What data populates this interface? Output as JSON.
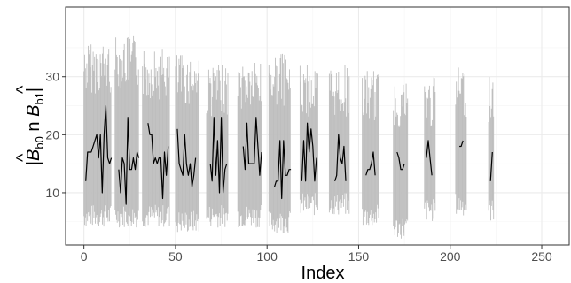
{
  "chart_data": {
    "type": "line",
    "title": "",
    "xlabel": "Index",
    "ylabel_parts": {
      "prefix": "|",
      "b0_letter": "B",
      "b0_sub": "b0",
      "middle": " n ",
      "b1_letter": "B",
      "b1_sub": "b1",
      "suffix": "|",
      "hat": "^"
    },
    "xlim": [
      -10,
      265
    ],
    "ylim": [
      1,
      42
    ],
    "x_ticks": [
      0,
      50,
      100,
      150,
      200,
      250
    ],
    "y_ticks": [
      10,
      20,
      30
    ],
    "grid": true,
    "legend": "none",
    "colors": {
      "band": "#bebebe",
      "line": "#000000",
      "grid_major": "#ebebeb",
      "grid_minor": "#f5f5f5",
      "panel_border": "#333333"
    },
    "series": [
      {
        "kind": "band-segments",
        "segments": [
          {
            "x0": 0,
            "x1": 15,
            "low": 4,
            "high": 36
          },
          {
            "x0": 17,
            "x1": 30,
            "low": 4,
            "high": 37
          },
          {
            "x0": 32,
            "x1": 47,
            "low": 4,
            "high": 35
          },
          {
            "x0": 50,
            "x1": 63,
            "low": 3,
            "high": 34
          },
          {
            "x0": 67,
            "x1": 79,
            "low": 4,
            "high": 32
          },
          {
            "x0": 84,
            "x1": 97,
            "low": 4,
            "high": 33
          },
          {
            "x0": 101,
            "x1": 113,
            "low": 3,
            "high": 34
          },
          {
            "x0": 118,
            "x1": 128,
            "low": 6,
            "high": 32
          },
          {
            "x0": 134,
            "x1": 145,
            "low": 6,
            "high": 32
          },
          {
            "x0": 152,
            "x1": 161,
            "low": 4,
            "high": 31
          },
          {
            "x0": 169,
            "x1": 177,
            "low": 2,
            "high": 30
          },
          {
            "x0": 186,
            "x1": 192,
            "low": 5,
            "high": 30
          },
          {
            "x0": 203,
            "x1": 209,
            "low": 6,
            "high": 32
          },
          {
            "x0": 221,
            "x1": 224,
            "low": 5,
            "high": 31
          }
        ]
      },
      {
        "kind": "lines",
        "segments": [
          {
            "x": [
              1,
              2,
              3,
              4,
              5,
              6,
              7,
              8,
              9,
              10,
              11,
              12,
              13,
              14,
              15
            ],
            "y": [
              12,
              17,
              17,
              17,
              18,
              19,
              20,
              16,
              20,
              10,
              20,
              25,
              16,
              15,
              16
            ]
          },
          {
            "x": [
              19,
              20,
              21,
              22,
              23,
              24,
              25,
              26,
              27,
              28,
              29,
              30
            ],
            "y": [
              14,
              10,
              16,
              15,
              8,
              23,
              14,
              14,
              16,
              14,
              17,
              16
            ]
          },
          {
            "x": [
              35,
              36,
              37,
              38,
              39,
              40,
              41,
              42,
              43,
              44,
              45,
              46
            ],
            "y": [
              22,
              20,
              20,
              15,
              16,
              15,
              16,
              16,
              9,
              17,
              13,
              18
            ]
          },
          {
            "x": [
              51,
              52,
              53,
              54,
              55,
              56,
              57,
              58,
              59,
              60,
              61
            ],
            "y": [
              21,
              15,
              14,
              13,
              20,
              15,
              13,
              15,
              11,
              13,
              16
            ]
          },
          {
            "x": [
              69,
              70,
              71,
              72,
              73,
              74,
              75,
              76,
              77,
              78
            ],
            "y": [
              15,
              12,
              23,
              13,
              19,
              10,
              23,
              10,
              14,
              15
            ]
          },
          {
            "x": [
              87,
              88,
              89,
              90,
              91,
              92,
              93,
              94,
              95,
              96,
              97
            ],
            "y": [
              18,
              14,
              22,
              15,
              15,
              15,
              15,
              23,
              18,
              13,
              17
            ]
          },
          {
            "x": [
              104,
              105,
              106,
              107,
              108,
              109,
              110,
              111,
              112,
              113
            ],
            "y": [
              11,
              12,
              12,
              19,
              9,
              19,
              13,
              13,
              14,
              14
            ]
          },
          {
            "x": [
              119,
              120,
              121,
              122,
              123,
              124,
              125,
              126,
              127
            ],
            "y": [
              12,
              19,
              12,
              22,
              17,
              21,
              18,
              12,
              16
            ]
          },
          {
            "x": [
              137,
              138,
              139,
              140,
              141,
              142,
              143
            ],
            "y": [
              12,
              13,
              20,
              16,
              15,
              18,
              12
            ]
          },
          {
            "x": [
              154,
              155,
              156,
              157,
              158,
              159
            ],
            "y": [
              13,
              14,
              14,
              15,
              17,
              13
            ]
          },
          {
            "x": [
              171,
              172,
              173,
              174,
              175
            ],
            "y": [
              17,
              16,
              14,
              14,
              15
            ]
          },
          {
            "x": [
              187,
              188,
              189,
              190
            ],
            "y": [
              16,
              19,
              16,
              13
            ]
          },
          {
            "x": [
              205,
              206,
              207
            ],
            "y": [
              18,
              18,
              19
            ]
          },
          {
            "x": [
              222,
              223
            ],
            "y": [
              12,
              17
            ]
          }
        ]
      }
    ]
  }
}
